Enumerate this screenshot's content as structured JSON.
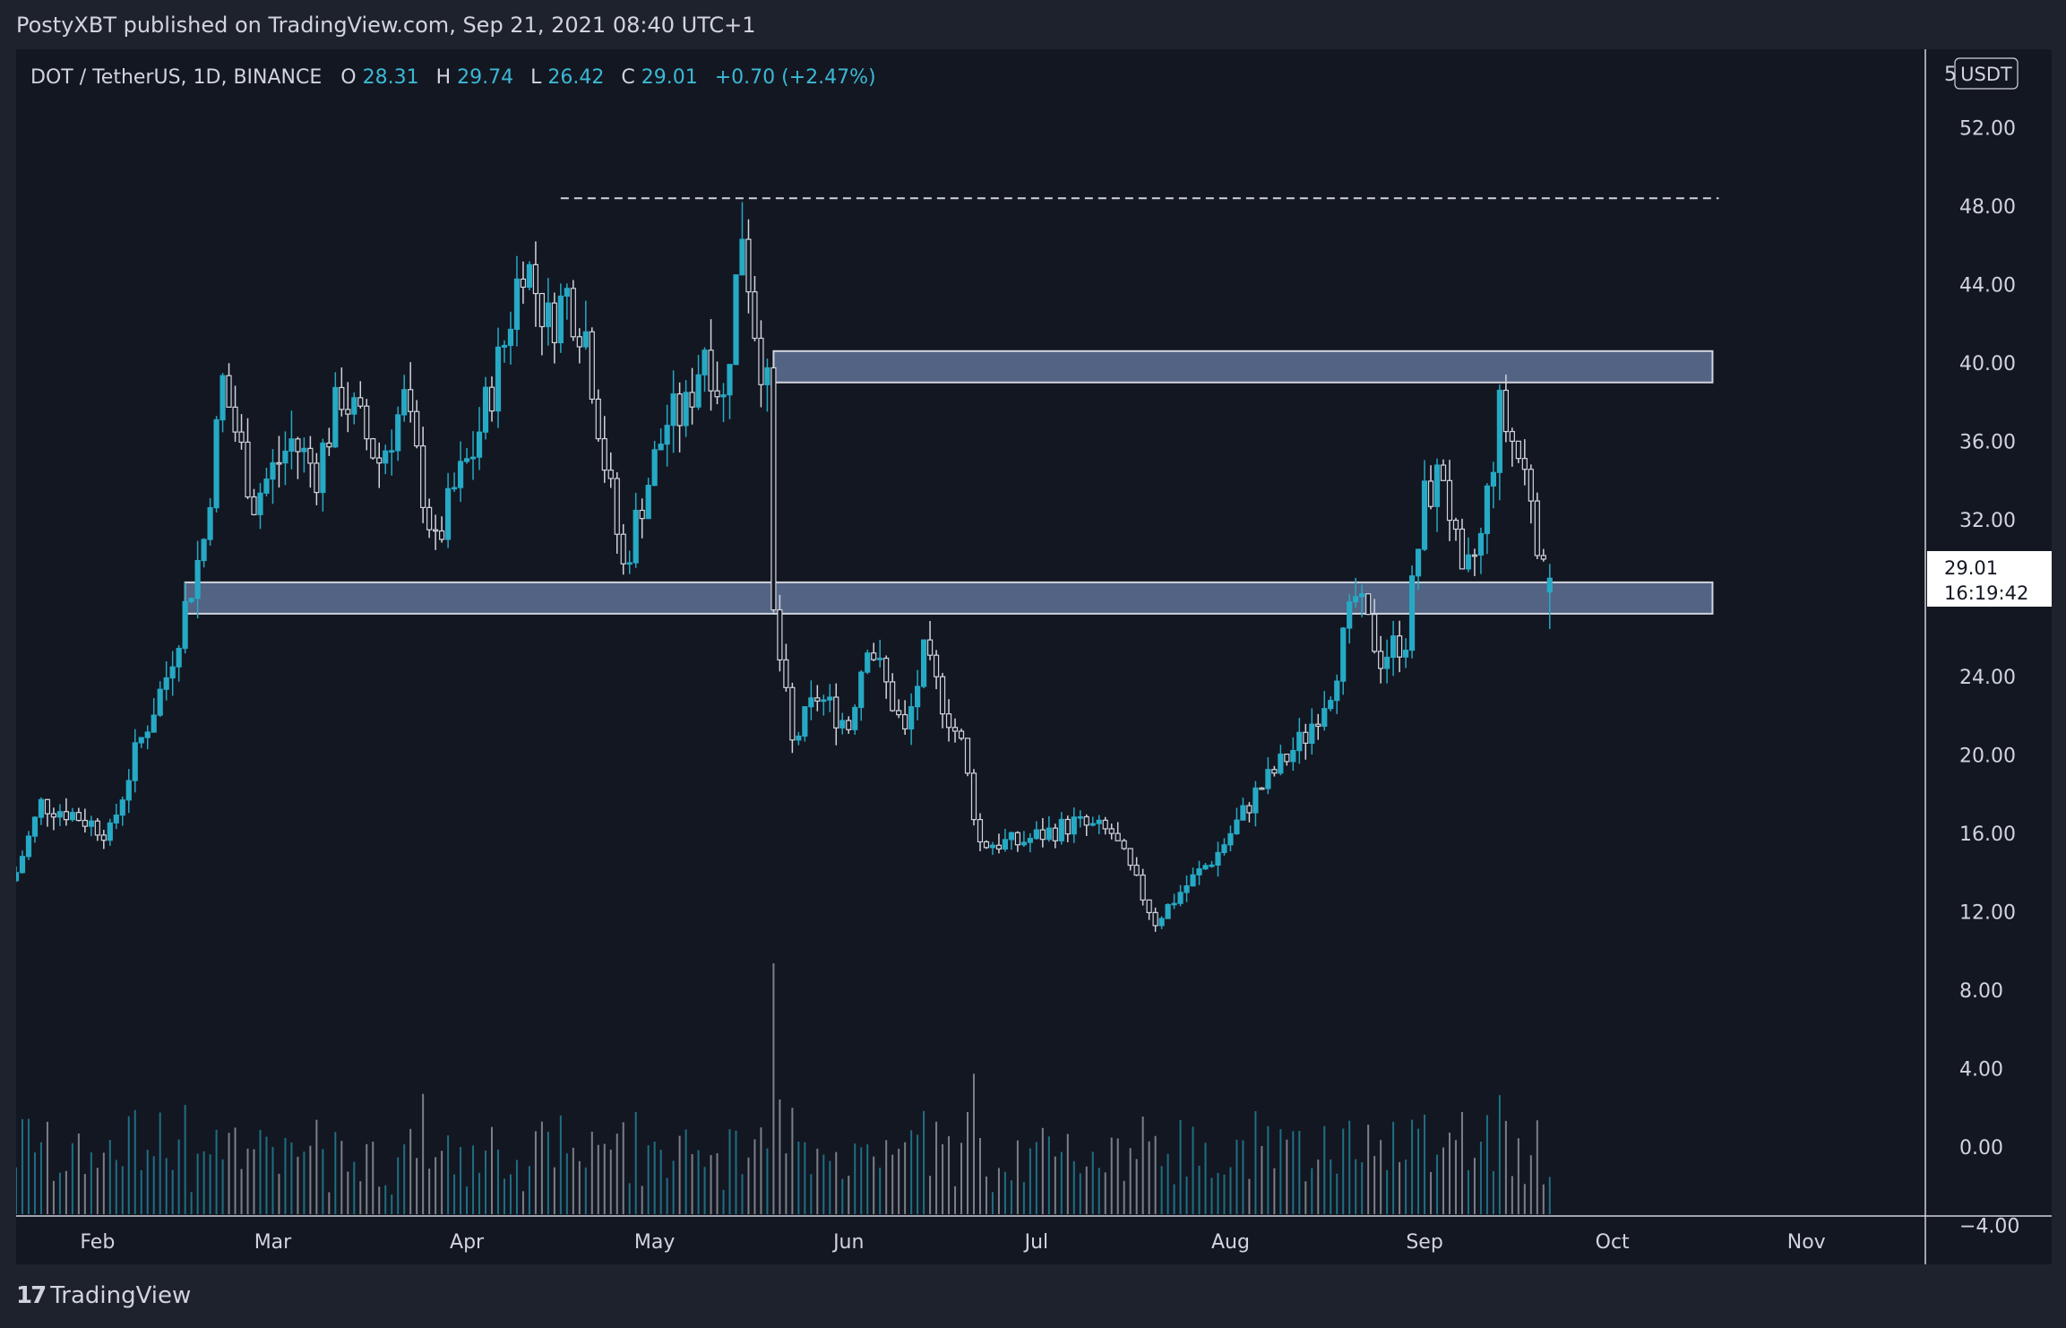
{
  "header": {
    "publisher": "PostyXBT published on TradingView.com, Sep 21, 2021 08:40 UTC+1"
  },
  "symbol": {
    "name": "DOT / TetherUS, 1D, BINANCE",
    "o_label": "O",
    "o": "28.31",
    "h_label": "H",
    "h": "29.74",
    "l_label": "L",
    "l": "26.42",
    "c_label": "C",
    "c": "29.01",
    "change": "+0.70 (+2.47%)"
  },
  "price_scale": {
    "currency": "USDT",
    "labels": [
      "52.00",
      "48.00",
      "44.00",
      "40.00",
      "36.00",
      "32.00",
      "24.00",
      "20.00",
      "16.00",
      "12.00",
      "8.00",
      "4.00",
      "0.00",
      "−4.00"
    ],
    "top_partial": "5",
    "current_price": "29.01",
    "countdown": "16:19:42"
  },
  "time_scale": {
    "labels": [
      "Feb",
      "Mar",
      "Apr",
      "May",
      "Jun",
      "Jul",
      "Aug",
      "Sep",
      "Oct",
      "Nov"
    ]
  },
  "footer": {
    "logo_mark": "17",
    "brand": "TradingView"
  },
  "colors": {
    "bg": "#131722",
    "up": "#26a9c4",
    "down": "#d1d4dc",
    "zone": "#5f7194",
    "zone_border": "#d1d4dc",
    "text": "#d1d4dc",
    "accent": "#3bb9d4"
  },
  "chart_data": {
    "type": "candlestick",
    "symbol": "DOT / TetherUS",
    "interval": "1D",
    "ohlc_last": {
      "open": 28.31,
      "high": 29.74,
      "low": 26.42,
      "close": 29.01
    },
    "y_range": [
      -6,
      56
    ],
    "x_range": [
      "2021-01-19",
      "2021-11-20"
    ],
    "waypoints": [
      [
        "2021-01-19",
        14.0
      ],
      [
        "2021-01-23",
        17.5
      ],
      [
        "2021-01-28",
        17.0
      ],
      [
        "2021-02-03",
        16.0
      ],
      [
        "2021-02-07",
        20.0
      ],
      [
        "2021-02-12",
        24.0
      ],
      [
        "2021-02-18",
        31.0
      ],
      [
        "2021-02-21",
        39.0
      ],
      [
        "2021-02-26",
        33.0
      ],
      [
        "2021-03-04",
        36.0
      ],
      [
        "2021-03-08",
        34.5
      ],
      [
        "2021-03-12",
        38.5
      ],
      [
        "2021-03-18",
        35.0
      ],
      [
        "2021-03-22",
        38.0
      ],
      [
        "2021-03-27",
        30.5
      ],
      [
        "2021-03-30",
        33.5
      ],
      [
        "2021-04-02",
        35.5
      ],
      [
        "2021-04-07",
        41.0
      ],
      [
        "2021-04-10",
        45.5
      ],
      [
        "2021-04-14",
        42.0
      ],
      [
        "2021-04-17",
        43.5
      ],
      [
        "2021-04-20",
        41.5
      ],
      [
        "2021-04-23",
        35.0
      ],
      [
        "2021-04-26",
        29.5
      ],
      [
        "2021-04-29",
        33.0
      ],
      [
        "2021-05-03",
        37.0
      ],
      [
        "2021-05-06",
        37.5
      ],
      [
        "2021-05-09",
        41.0
      ],
      [
        "2021-05-12",
        38.0
      ],
      [
        "2021-05-15",
        47.0
      ],
      [
        "2021-05-17",
        42.0
      ],
      [
        "2021-05-19",
        38.5
      ],
      [
        "2021-05-20",
        27.0
      ],
      [
        "2021-05-23",
        20.5
      ],
      [
        "2021-05-27",
        23.0
      ],
      [
        "2021-06-01",
        21.5
      ],
      [
        "2021-06-04",
        26.0
      ],
      [
        "2021-06-10",
        21.0
      ],
      [
        "2021-06-13",
        25.0
      ],
      [
        "2021-06-19",
        20.5
      ],
      [
        "2021-06-22",
        15.5
      ],
      [
        "2021-06-28",
        15.5
      ],
      [
        "2021-07-07",
        16.5
      ],
      [
        "2021-07-13",
        16.0
      ],
      [
        "2021-07-20",
        11.5
      ],
      [
        "2021-07-24",
        13.0
      ],
      [
        "2021-07-30",
        15.0
      ],
      [
        "2021-08-05",
        18.0
      ],
      [
        "2021-08-13",
        21.0
      ],
      [
        "2021-08-17",
        23.5
      ],
      [
        "2021-08-21",
        28.0
      ],
      [
        "2021-08-25",
        25.0
      ],
      [
        "2021-08-29",
        26.0
      ],
      [
        "2021-09-01",
        33.0
      ],
      [
        "2021-09-04",
        34.5
      ],
      [
        "2021-09-07",
        28.5
      ],
      [
        "2021-09-10",
        31.0
      ],
      [
        "2021-09-13",
        37.5
      ],
      [
        "2021-09-15",
        36.0
      ],
      [
        "2021-09-18",
        33.5
      ],
      [
        "2021-09-20",
        29.0
      ],
      [
        "2021-09-21",
        29.01
      ]
    ],
    "resistance_dashed_line": {
      "price": 48.4,
      "from": "2021-04-16",
      "to": "2021-10-18"
    },
    "zones": [
      {
        "label": "resistance-zone",
        "from": "2021-05-20",
        "to": "2021-10-17",
        "low": 39.0,
        "high": 40.6
      },
      {
        "label": "support-zone",
        "from": "2021-02-15",
        "to": "2021-10-17",
        "low": 27.2,
        "high": 28.8
      }
    ]
  }
}
